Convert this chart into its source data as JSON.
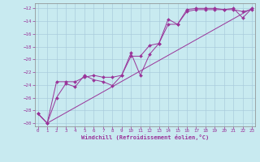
{
  "bg_color": "#c8eaf0",
  "grid_color": "#aaccdd",
  "line_color": "#993399",
  "xlim_min": -0.3,
  "xlim_max": 23.3,
  "ylim_min": -30.5,
  "ylim_max": -11.2,
  "yticks": [
    -30,
    -28,
    -26,
    -24,
    -22,
    -20,
    -18,
    -16,
    -14,
    -12
  ],
  "xticks": [
    0,
    1,
    2,
    3,
    4,
    5,
    6,
    7,
    8,
    9,
    10,
    11,
    12,
    13,
    14,
    15,
    16,
    17,
    18,
    19,
    20,
    21,
    22,
    23
  ],
  "xlabel": "Windchill (Refroidissement éolien,°C)",
  "line1_x": [
    0,
    1,
    2,
    3,
    4,
    5,
    6,
    7,
    8,
    9,
    10,
    11,
    12,
    13,
    14,
    15,
    16,
    17,
    18,
    19,
    20,
    21,
    22,
    23
  ],
  "line1_y": [
    -28.5,
    -30.0,
    -26.0,
    -23.8,
    -24.3,
    -22.5,
    -23.2,
    -23.5,
    -24.1,
    -22.5,
    -19.0,
    -22.5,
    -19.2,
    -17.5,
    -13.7,
    -14.5,
    -12.2,
    -12.0,
    -12.0,
    -12.0,
    -12.2,
    -12.0,
    -13.5,
    -12.0
  ],
  "line2_x": [
    0,
    1,
    2,
    3,
    4,
    5,
    6,
    7,
    8,
    9,
    10,
    11,
    12,
    13,
    14,
    15,
    16,
    17,
    18,
    19,
    20,
    21,
    22,
    23
  ],
  "line2_y": [
    -28.5,
    -30.0,
    -23.5,
    -23.5,
    -23.5,
    -22.8,
    -22.5,
    -22.8,
    -22.8,
    -22.5,
    -19.5,
    -19.5,
    -17.8,
    -17.5,
    -14.5,
    -14.5,
    -12.5,
    -12.2,
    -12.2,
    -12.2,
    -12.2,
    -12.2,
    -12.5,
    -12.2
  ],
  "line3_x": [
    0,
    1,
    23
  ],
  "line3_y": [
    -28.5,
    -30.0,
    -12.0
  ],
  "markersize": 2.0,
  "linewidth": 0.7
}
